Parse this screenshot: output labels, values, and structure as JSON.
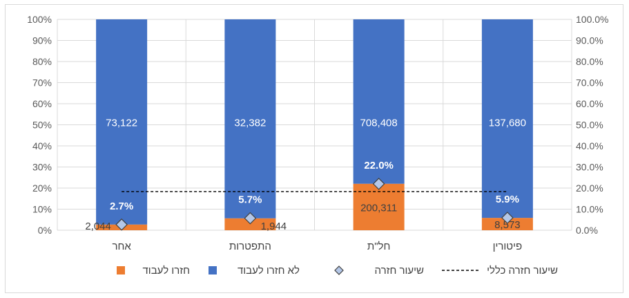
{
  "chart_data": {
    "type": "bar",
    "stacked": true,
    "percent_stacked": true,
    "categories": [
      "אחר",
      "התפטרות",
      "חל\"ת",
      "פיטורין"
    ],
    "series": [
      {
        "name": "חזרו לעבוד",
        "values": [
          2044,
          1944,
          200311,
          8573
        ],
        "color": "#ED7D31",
        "value_label_color": "#404040"
      },
      {
        "name": "לא חזרו לעבוד",
        "values": [
          73122,
          32382,
          708408,
          137680
        ],
        "color": "#4472C4",
        "value_label_color": "#ffffff"
      }
    ],
    "return_rate": {
      "name": "שיעור חזרה",
      "values": [
        2.7,
        5.7,
        22.0,
        5.9
      ],
      "labels": [
        "2.7%",
        "5.7%",
        "22.0%",
        "5.9%"
      ],
      "marker": "diamond",
      "color": "#B4C7E7"
    },
    "overall_rate": {
      "name": "שיעור חזרה כללי",
      "value": 18.3,
      "style": "dashed",
      "color": "#000000"
    },
    "y_left": {
      "ticks": [
        "0%",
        "10%",
        "20%",
        "30%",
        "40%",
        "50%",
        "60%",
        "70%",
        "80%",
        "90%",
        "100%"
      ],
      "ylim": [
        0,
        100
      ]
    },
    "y_right": {
      "ticks": [
        "0.0%",
        "10.0%",
        "20.0%",
        "30.0%",
        "40.0%",
        "50.0%",
        "60.0%",
        "70.0%",
        "80.0%",
        "90.0%",
        "100.0%"
      ],
      "ylim": [
        0,
        100
      ]
    },
    "grid": true,
    "legend_position": "bottom",
    "direction": "rtl"
  }
}
